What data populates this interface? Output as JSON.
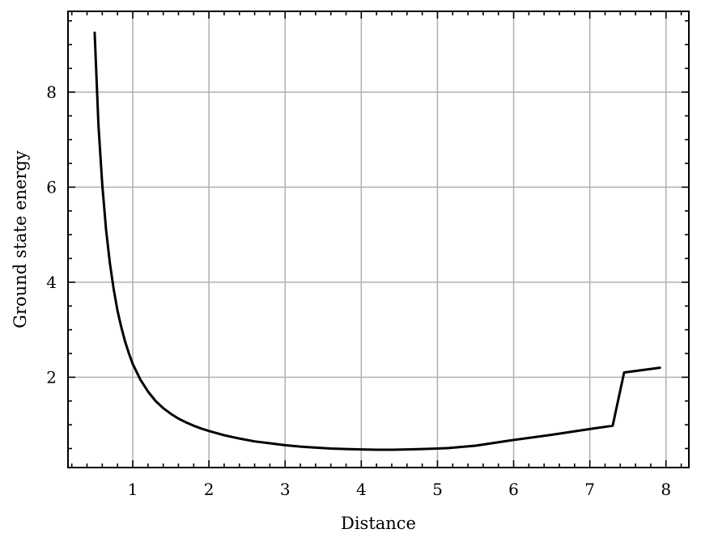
{
  "chart_data": {
    "type": "line",
    "title": "",
    "xlabel": "Distance",
    "ylabel": "Ground state energy",
    "xlim": [
      0.15,
      8.3
    ],
    "ylim": [
      0.1,
      9.7
    ],
    "xticks": [
      1,
      2,
      3,
      4,
      5,
      6,
      7,
      8
    ],
    "yticks": [
      2,
      4,
      6,
      8
    ],
    "xtick_labels": [
      "1",
      "2",
      "3",
      "4",
      "5",
      "6",
      "7",
      "8"
    ],
    "ytick_labels": [
      "2",
      "4",
      "6",
      "8"
    ],
    "x_minor_step": 0.2,
    "y_minor_step": 0.5,
    "grid": true,
    "legend": "none",
    "line_color": "#000000",
    "series": [
      {
        "x": [
          0.5,
          0.55,
          0.6,
          0.65,
          0.7,
          0.75,
          0.8,
          0.85,
          0.9,
          0.95,
          1.0,
          1.1,
          1.2,
          1.3,
          1.4,
          1.5,
          1.6,
          1.7,
          1.8,
          1.9,
          2.0,
          2.2,
          2.4,
          2.6,
          2.8,
          3.0,
          3.2,
          3.4,
          3.6,
          3.8,
          4.0,
          4.2,
          4.4,
          4.6,
          4.8,
          5.0,
          5.15,
          5.5,
          6.0,
          6.5,
          7.0,
          7.3,
          7.45,
          7.92
        ],
        "y": [
          9.25,
          7.3,
          6.05,
          5.1,
          4.4,
          3.85,
          3.4,
          3.05,
          2.75,
          2.5,
          2.28,
          1.95,
          1.7,
          1.5,
          1.35,
          1.23,
          1.13,
          1.05,
          0.98,
          0.92,
          0.87,
          0.78,
          0.71,
          0.65,
          0.61,
          0.57,
          0.54,
          0.52,
          0.5,
          0.49,
          0.48,
          0.475,
          0.475,
          0.48,
          0.49,
          0.5,
          0.51,
          0.56,
          0.68,
          0.79,
          0.91,
          0.98,
          2.1,
          2.2
        ]
      }
    ]
  }
}
